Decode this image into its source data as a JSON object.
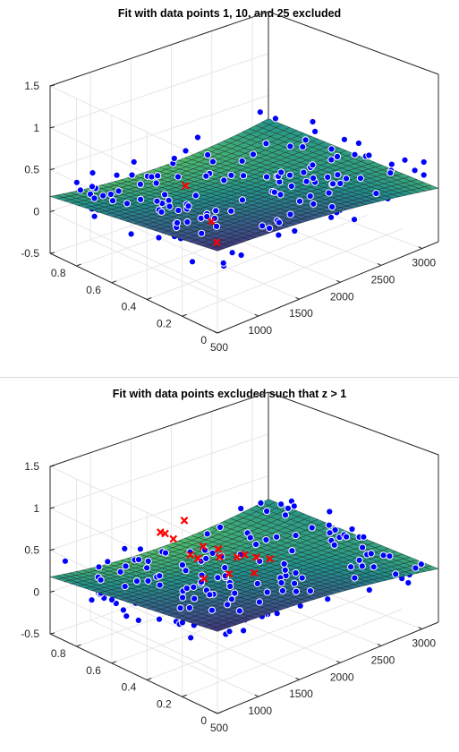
{
  "chart_data": [
    {
      "type": "surface-scatter-3d",
      "title": "Fit with data points 1, 10, and 25 excluded",
      "x_ticks": [
        "500",
        "1000",
        "1500",
        "2000",
        "2500",
        "3000"
      ],
      "y_ticks": [
        "0",
        "0.2",
        "0.4",
        "0.6",
        "0.8"
      ],
      "z_ticks": [
        "-0.5",
        "0",
        "0.5",
        "1",
        "1.5"
      ],
      "xlim": [
        500,
        3200
      ],
      "ylim": [
        0,
        0.95
      ],
      "zlim": [
        -0.5,
        1.5
      ],
      "grid": true,
      "colors": {
        "included": "#0000ff",
        "excluded": "#ff0000",
        "surface_low": "#fde725",
        "surface_mid": "#21918c",
        "surface_high": "#3b3b9c"
      },
      "excluded_points": [
        {
          "x": 1300,
          "y": 0.55,
          "z": 0.42
        },
        {
          "x": 1250,
          "y": 0.35,
          "z": -0.05
        },
        {
          "x": 1400,
          "y": 0.45,
          "z": 0.05
        }
      ]
    },
    {
      "type": "surface-scatter-3d",
      "title": "Fit with data points excluded such that z > 1",
      "x_ticks": [
        "500",
        "1000",
        "1500",
        "2000",
        "2500",
        "3000"
      ],
      "y_ticks": [
        "0",
        "0.2",
        "0.4",
        "0.6",
        "0.8"
      ],
      "z_ticks": [
        "-0.5",
        "0",
        "0.5",
        "1",
        "1.5"
      ],
      "xlim": [
        500,
        3200
      ],
      "ylim": [
        0,
        0.95
      ],
      "zlim": [
        -0.5,
        1.5
      ],
      "grid": true,
      "colors": {
        "included": "#0000ff",
        "excluded": "#ff0000",
        "surface_low": "#fde725",
        "surface_mid": "#21918c",
        "surface_high": "#3b3b9c"
      },
      "excluded_points": [
        {
          "x": 1100,
          "y": 0.6,
          "z": 0.85
        },
        {
          "x": 1150,
          "y": 0.55,
          "z": 0.8
        },
        {
          "x": 1200,
          "y": 0.62,
          "z": 0.78
        },
        {
          "x": 1350,
          "y": 0.58,
          "z": 0.92
        },
        {
          "x": 1250,
          "y": 0.5,
          "z": 0.62
        },
        {
          "x": 1300,
          "y": 0.48,
          "z": 0.58
        },
        {
          "x": 1450,
          "y": 0.52,
          "z": 0.63
        },
        {
          "x": 1500,
          "y": 0.45,
          "z": 0.55
        },
        {
          "x": 1550,
          "y": 0.48,
          "z": 0.6
        },
        {
          "x": 1650,
          "y": 0.42,
          "z": 0.52
        },
        {
          "x": 1700,
          "y": 0.4,
          "z": 0.55
        },
        {
          "x": 1800,
          "y": 0.38,
          "z": 0.5
        },
        {
          "x": 1200,
          "y": 0.4,
          "z": 0.45
        },
        {
          "x": 1400,
          "y": 0.35,
          "z": 0.48
        },
        {
          "x": 1600,
          "y": 0.3,
          "z": 0.46
        },
        {
          "x": 1900,
          "y": 0.35,
          "z": 0.47
        }
      ]
    }
  ]
}
